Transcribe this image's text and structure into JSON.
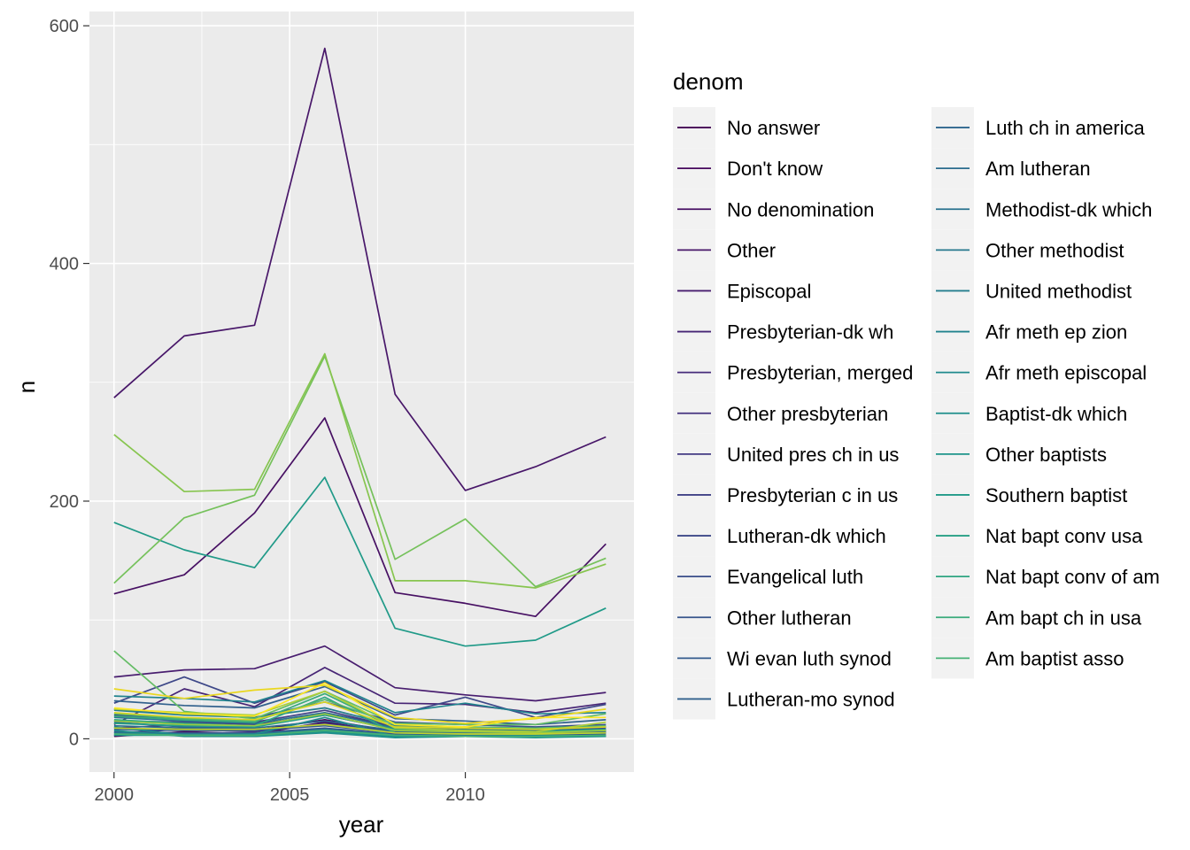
{
  "chart_data": {
    "type": "line",
    "xlabel": "year",
    "ylabel": "n",
    "x": [
      2000,
      2002,
      2004,
      2006,
      2008,
      2010,
      2012,
      2014
    ],
    "xlim": [
      1999.3,
      2014.8
    ],
    "ylim": [
      -28,
      612
    ],
    "xticks": [
      2000,
      2005,
      2010
    ],
    "yticks": [
      0,
      200,
      400,
      600
    ],
    "grid": true,
    "legend": {
      "title": "denom",
      "placement": "right",
      "columns": 2
    },
    "series": [
      {
        "name": "No answer",
        "color": "#440154",
        "values": [
          2,
          6,
          4,
          14,
          5,
          3,
          4,
          5
        ]
      },
      {
        "name": "Don't know",
        "color": "#46085C",
        "values": [
          3,
          9,
          7,
          16,
          6,
          5,
          6,
          7
        ]
      },
      {
        "name": "No denomination",
        "color": "#471063",
        "values": [
          122,
          138,
          190,
          270,
          123,
          114,
          103,
          164
        ]
      },
      {
        "name": "Other",
        "color": "#481769",
        "values": [
          287,
          339,
          348,
          581,
          290,
          209,
          229,
          254
        ]
      },
      {
        "name": "Episcopal",
        "color": "#481D6F",
        "values": [
          52,
          58,
          59,
          78,
          43,
          37,
          32,
          39
        ]
      },
      {
        "name": "Presbyterian-dk wh",
        "color": "#472575",
        "values": [
          12,
          42,
          27,
          60,
          30,
          29,
          22,
          30
        ]
      },
      {
        "name": "Presbyterian, merged",
        "color": "#462C7B",
        "values": [
          9,
          12,
          10,
          22,
          10,
          8,
          7,
          10
        ]
      },
      {
        "name": "Other presbyterian",
        "color": "#45337F",
        "values": [
          5,
          8,
          6,
          13,
          6,
          4,
          5,
          6
        ]
      },
      {
        "name": "United pres ch in us",
        "color": "#433A83",
        "values": [
          15,
          14,
          12,
          20,
          8,
          6,
          5,
          7
        ]
      },
      {
        "name": "Presbyterian c in us",
        "color": "#404186",
        "values": [
          20,
          16,
          14,
          24,
          10,
          8,
          6,
          9
        ]
      },
      {
        "name": "Lutheran-dk which",
        "color": "#3E4888",
        "values": [
          30,
          52,
          30,
          48,
          20,
          35,
          18,
          29
        ]
      },
      {
        "name": "Evangelical luth",
        "color": "#3A4E8A",
        "values": [
          25,
          21,
          18,
          31,
          14,
          12,
          10,
          12
        ]
      },
      {
        "name": "Other lutheran",
        "color": "#37558C",
        "values": [
          6,
          5,
          5,
          9,
          4,
          3,
          3,
          4
        ]
      },
      {
        "name": "Wi evan luth synod",
        "color": "#345B8D",
        "values": [
          8,
          7,
          7,
          11,
          5,
          4,
          4,
          5
        ]
      },
      {
        "name": "Lutheran-mo synod",
        "color": "#31618D",
        "values": [
          32,
          28,
          26,
          44,
          17,
          15,
          12,
          16
        ]
      },
      {
        "name": "Luth ch in america",
        "color": "#2E678E",
        "values": [
          14,
          10,
          9,
          15,
          7,
          6,
          5,
          6
        ]
      },
      {
        "name": "Am lutheran",
        "color": "#2B6C8E",
        "values": [
          11,
          9,
          8,
          12,
          6,
          5,
          4,
          5
        ]
      },
      {
        "name": "Methodist-dk which",
        "color": "#29728E",
        "values": [
          18,
          15,
          13,
          22,
          9,
          8,
          7,
          8
        ]
      },
      {
        "name": "Other methodist",
        "color": "#26788E",
        "values": [
          5,
          4,
          4,
          8,
          3,
          3,
          2,
          3
        ]
      },
      {
        "name": "United methodist",
        "color": "#247D8E",
        "values": [
          24,
          20,
          18,
          26,
          11,
          9,
          8,
          10
        ]
      },
      {
        "name": "Afr meth ep zion",
        "color": "#21838E",
        "values": [
          36,
          34,
          31,
          49,
          22,
          30,
          21,
          22
        ]
      },
      {
        "name": "Afr meth episcopal",
        "color": "#1F898D",
        "values": [
          10,
          3,
          4,
          18,
          2,
          2,
          3,
          2
        ]
      },
      {
        "name": "Baptist-dk which",
        "color": "#1E8E8C",
        "values": [
          7,
          2,
          2,
          5,
          1,
          2,
          2,
          2
        ]
      },
      {
        "name": "Other baptists",
        "color": "#1E948A",
        "values": [
          3,
          3,
          2,
          6,
          2,
          2,
          1,
          2
        ]
      },
      {
        "name": "Southern baptist",
        "color": "#209A88",
        "values": [
          182,
          159,
          144,
          220,
          93,
          78,
          83,
          110
        ]
      },
      {
        "name": "Nat bapt conv usa",
        "color": "#26A085",
        "values": [
          13,
          11,
          10,
          20,
          8,
          7,
          6,
          8
        ]
      },
      {
        "name": "Nat bapt conv of am",
        "color": "#2FA581",
        "values": [
          16,
          13,
          11,
          35,
          5,
          4,
          4,
          5
        ]
      },
      {
        "name": "Am bapt ch in usa",
        "color": "#3AAB7B",
        "values": [
          19,
          16,
          14,
          38,
          9,
          7,
          6,
          7
        ]
      },
      {
        "name": "Am baptist asso",
        "color": "#46B175",
        "values": [
          4,
          3,
          3,
          7,
          3,
          2,
          2,
          3
        ]
      },
      {
        "name": "Other",
        "color": "#54B66E",
        "values": [
          21,
          17,
          15,
          33,
          12,
          10,
          9,
          11
        ]
      },
      {
        "name": "Other",
        "color": "#64BC65",
        "values": [
          74,
          23,
          17,
          40,
          13,
          12,
          12,
          21
        ]
      },
      {
        "name": "Other",
        "color": "#75C15B",
        "values": [
          131,
          186,
          205,
          322,
          151,
          185,
          128,
          152
        ]
      },
      {
        "name": "Other",
        "color": "#87C54F",
        "values": [
          256,
          208,
          210,
          324,
          133,
          133,
          127,
          147
        ]
      },
      {
        "name": "Other",
        "color": "#9ACA43",
        "values": [
          15,
          12,
          11,
          21,
          7,
          6,
          5,
          7
        ]
      },
      {
        "name": "Other",
        "color": "#AECE38",
        "values": [
          25,
          22,
          20,
          40,
          9,
          7,
          6,
          14
        ]
      },
      {
        "name": "Other",
        "color": "#C2D22D",
        "values": [
          9,
          8,
          8,
          12,
          5,
          4,
          4,
          5
        ]
      },
      {
        "name": "Other",
        "color": "#D6D524",
        "values": [
          22,
          18,
          16,
          31,
          10,
          9,
          8,
          10
        ]
      },
      {
        "name": "Other",
        "color": "#EAD71F",
        "values": [
          42,
          34,
          41,
          45,
          18,
          13,
          17,
          25
        ]
      },
      {
        "name": "Other",
        "color": "#FDE725",
        "values": [
          26,
          21,
          19,
          47,
          12,
          10,
          18,
          18
        ]
      }
    ]
  }
}
